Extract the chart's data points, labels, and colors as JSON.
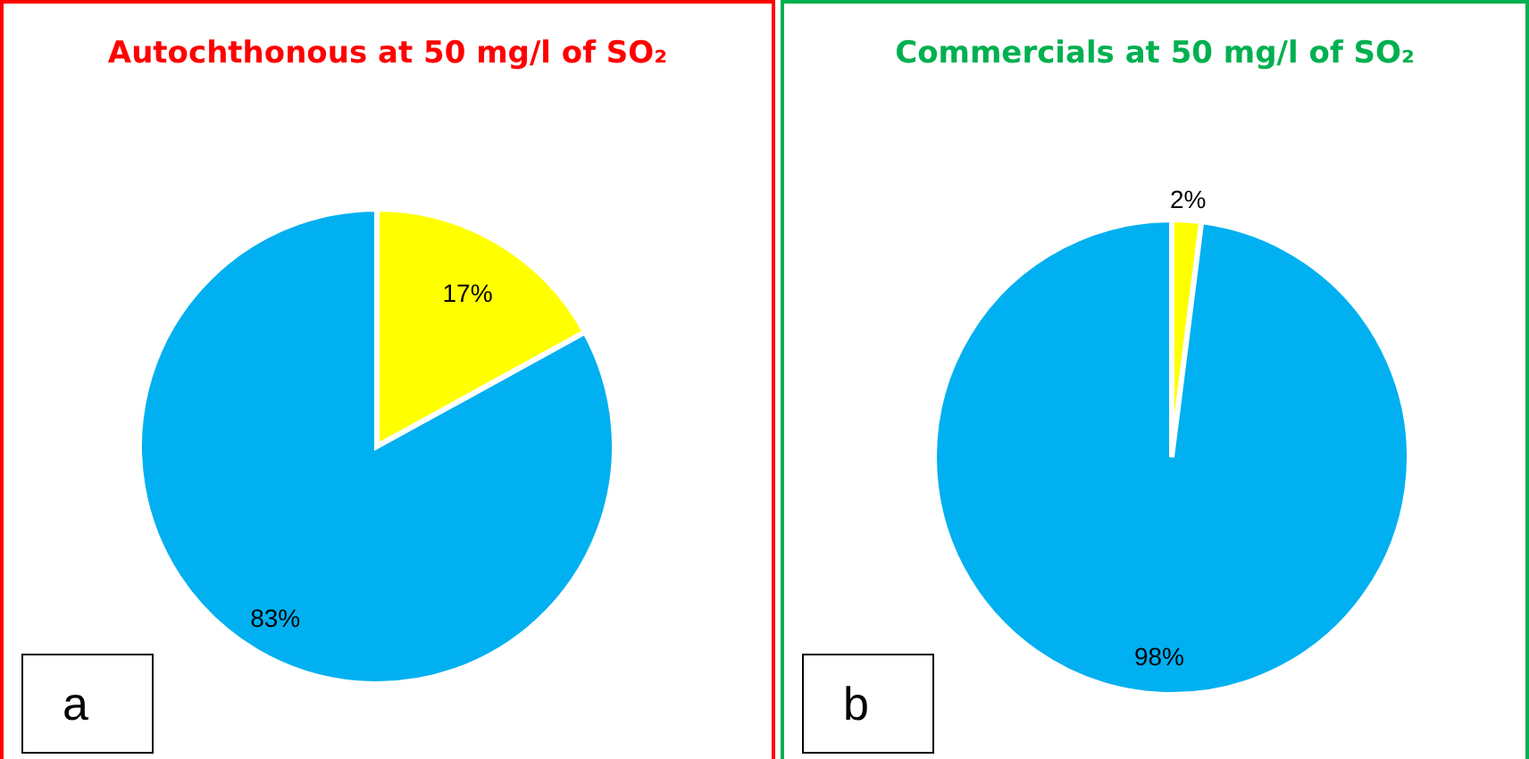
{
  "chart_data": [
    {
      "type": "pie",
      "title": "Autochthonous at 50 mg/l of SO₂",
      "categories": [
        null,
        null
      ],
      "values": [
        17,
        83
      ],
      "colors": [
        "#ffff00",
        "#00b0f0"
      ],
      "value_labels": [
        "17%",
        "83%"
      ],
      "annotations": [
        "a"
      ]
    },
    {
      "type": "pie",
      "title": "Commercials at 50 mg/l of SO₂",
      "categories": [
        null,
        null
      ],
      "values": [
        2,
        98
      ],
      "colors": [
        "#ffff00",
        "#00b0f0"
      ],
      "value_labels": [
        "2%",
        "98%"
      ],
      "annotations": [
        "b"
      ]
    }
  ]
}
